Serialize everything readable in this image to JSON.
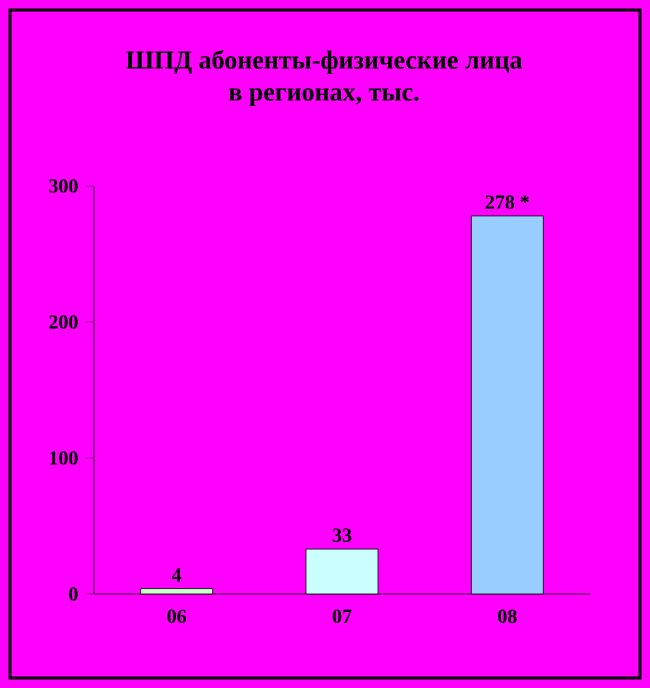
{
  "chart_data": {
    "type": "bar",
    "title": "ШПД абоненты-физические лица\nв регионах, тыс.",
    "categories": [
      "06",
      "07",
      "08"
    ],
    "values": [
      4,
      33,
      278
    ],
    "value_labels": [
      "4",
      "33",
      "278 *"
    ],
    "colors": [
      "#ccffcc",
      "#ccffff",
      "#99ccff"
    ],
    "ylim": [
      0,
      300
    ],
    "yticks": [
      0,
      100,
      200,
      300
    ],
    "grid": false
  }
}
